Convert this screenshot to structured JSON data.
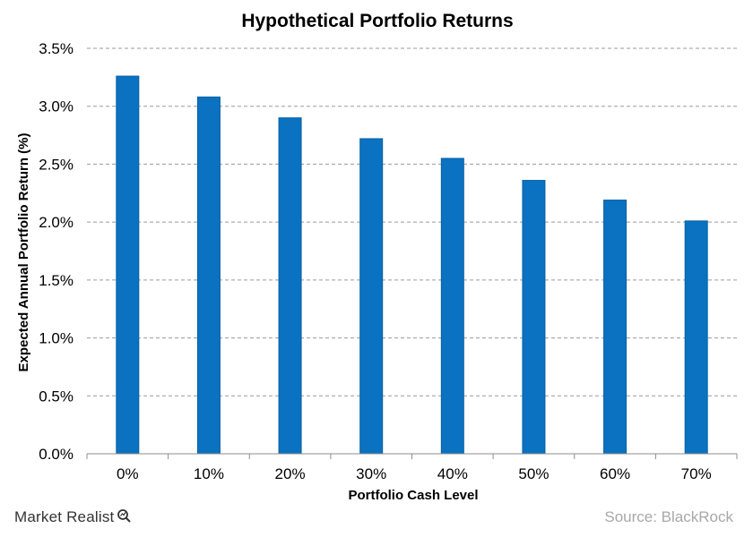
{
  "chart_data": {
    "type": "bar",
    "title": "Hypothetical Portfolio Returns",
    "xlabel": "Portfolio Cash Level",
    "ylabel": "Expected Annual Portfolio Return (%)",
    "categories": [
      "0%",
      "10%",
      "20%",
      "30%",
      "40%",
      "50%",
      "60%",
      "70%"
    ],
    "values": [
      3.26,
      3.08,
      2.9,
      2.72,
      2.55,
      2.36,
      2.19,
      2.01
    ],
    "ylim": [
      0,
      3.5
    ],
    "yticks": [
      "0.0%",
      "0.5%",
      "1.0%",
      "1.5%",
      "2.0%",
      "2.5%",
      "3.0%",
      "3.5%"
    ],
    "grid": true,
    "legend": "none",
    "bar_color": "#0a72c0"
  },
  "footer": {
    "brand": "Market Realist",
    "brand_icon": "magnifier-icon",
    "source": "Source: BlackRock"
  }
}
